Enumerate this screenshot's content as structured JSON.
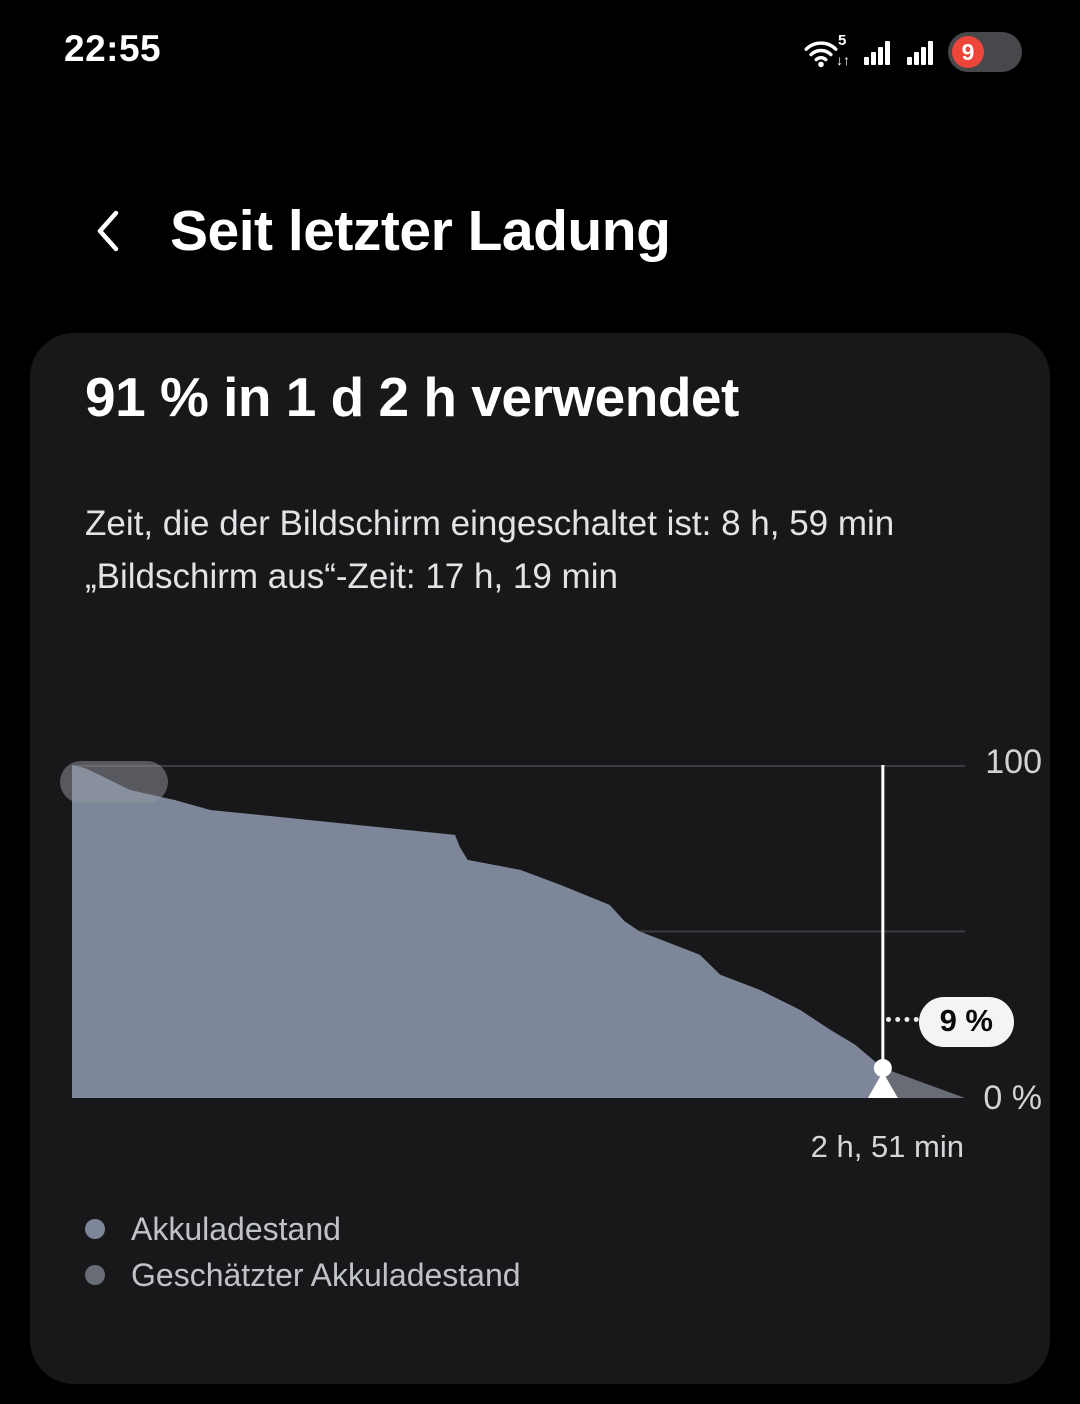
{
  "status_bar": {
    "time": "22:55",
    "wifi_standard": "5",
    "battery_percent": "9",
    "battery_badge_color": "#ee453a"
  },
  "header": {
    "title": "Seit letzter Ladung"
  },
  "icons": {
    "back": "chevron-left",
    "wifi": "wifi-arcs",
    "signal": "signal-bars",
    "battery": "battery-pill"
  },
  "card": {
    "title": "91 % in 1 d 2 h verwendet",
    "description_lines": [
      "Zeit, die der Bildschirm eingeschaltet ist: 8 h, 59 min",
      "„Bildschirm aus“-Zeit: 17 h, 19 min"
    ],
    "legend": [
      {
        "label": "Akkuladestand",
        "color": "#7d8799"
      },
      {
        "label": "Geschätzter Akkuladestand",
        "color": "#686c74"
      }
    ]
  },
  "chart_data": {
    "type": "area",
    "ylim": [
      0,
      100
    ],
    "grid": "horizontal",
    "gridlines_percent": [
      100,
      50
    ],
    "y_tick_labels": {
      "top": "100",
      "bottom": "0 %"
    },
    "series": [
      {
        "name": "Akkuladestand",
        "color": "#7d8799",
        "x_percent": [
          0,
          1.5,
          3.1,
          6.5,
          11.5,
          15.5,
          42.9,
          43.4,
          44.3,
          50.2,
          54.7,
          60.2,
          61.9,
          63.6,
          70.3,
          72.6,
          77,
          81.5,
          84.9,
          87.7,
          89.9,
          90.8
        ],
        "values": [
          100,
          99,
          97,
          92.5,
          89.5,
          86.5,
          79,
          75.5,
          71.5,
          68.5,
          64,
          58,
          53,
          50,
          43,
          37,
          32.5,
          26.5,
          20.5,
          16,
          11,
          9
        ]
      },
      {
        "name": "Geschätzter Akkuladestand",
        "color": "#686c74",
        "x_percent": [
          90.8,
          100
        ],
        "values": [
          9,
          0
        ]
      }
    ],
    "marker": {
      "x_percent": 90.8,
      "value": 9,
      "label": "9 %",
      "time_remaining": "2 h, 51 min"
    }
  }
}
